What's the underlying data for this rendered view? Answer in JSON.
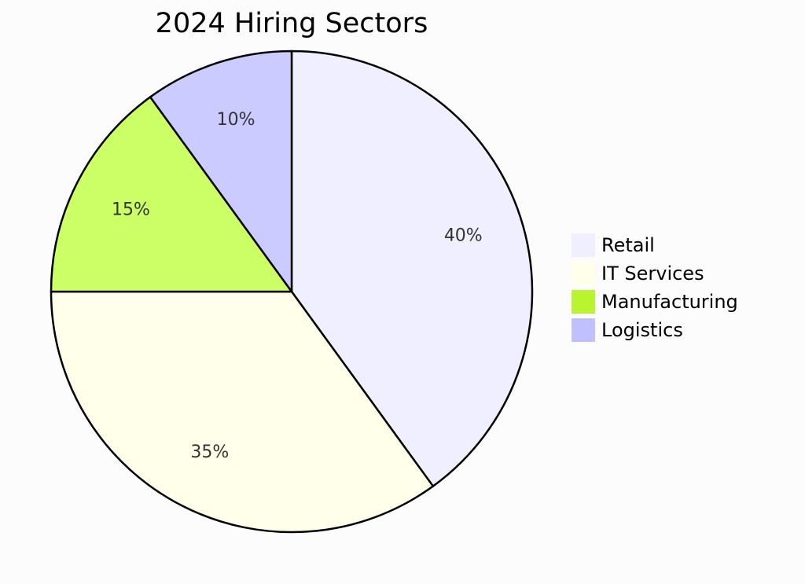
{
  "chart_data": {
    "type": "pie",
    "title": "2024 Hiring Sectors",
    "legend_position": "right",
    "slices": [
      {
        "label": "Retail",
        "value": 40,
        "display": "40%",
        "color": "#EFEFFF"
      },
      {
        "label": "IT Services",
        "value": 35,
        "display": "35%",
        "color": "#FFFFEA"
      },
      {
        "label": "Manufacturing",
        "value": 15,
        "display": "15%",
        "color": "#CCFF66"
      },
      {
        "label": "Logistics",
        "value": 10,
        "display": "10%",
        "color": "#CBCBFF"
      }
    ]
  },
  "legend_colors": [
    "#EFEFFF",
    "#FFFFEA",
    "#B8F52F",
    "#C0C0FF"
  ]
}
